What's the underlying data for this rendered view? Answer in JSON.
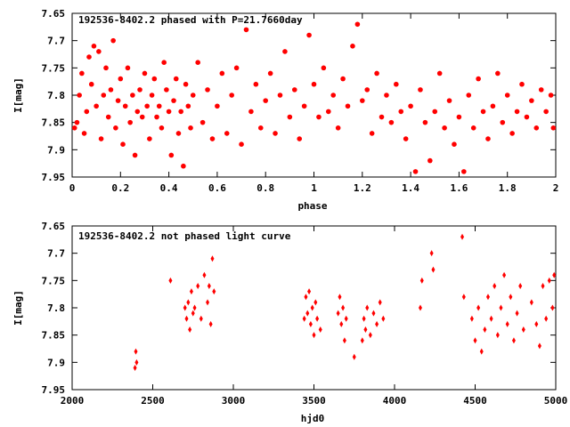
{
  "chart_data": [
    {
      "type": "scatter",
      "title": "192536-8402.2 phased with P=21.7660day",
      "xlabel": "phase",
      "ylabel": "I[mag]",
      "xlim": [
        0,
        2
      ],
      "ylim": [
        7.95,
        7.65
      ],
      "y_inverted": true,
      "xticks": [
        0,
        0.2,
        0.4,
        0.6,
        0.8,
        1,
        1.2,
        1.4,
        1.6,
        1.8,
        2
      ],
      "xtick_labels": [
        "0",
        "0.2",
        "0.4",
        "0.6",
        "0.8",
        "1",
        "1.2",
        "1.4",
        "1.6",
        "1.8",
        "2"
      ],
      "yticks": [
        7.65,
        7.7,
        7.75,
        7.8,
        7.85,
        7.9,
        7.95
      ],
      "ytick_labels": [
        "7.65",
        "7.7",
        "7.75",
        "7.8",
        "7.85",
        "7.9",
        "7.95"
      ],
      "marker_color": "#ff0000",
      "marker": "filled-circle",
      "points": [
        [
          0.01,
          7.86
        ],
        [
          0.02,
          7.85
        ],
        [
          0.03,
          7.8
        ],
        [
          0.04,
          7.76
        ],
        [
          0.05,
          7.87
        ],
        [
          0.06,
          7.83
        ],
        [
          0.07,
          7.73
        ],
        [
          0.08,
          7.78
        ],
        [
          0.09,
          7.71
        ],
        [
          0.1,
          7.82
        ],
        [
          0.11,
          7.72
        ],
        [
          0.12,
          7.88
        ],
        [
          0.13,
          7.8
        ],
        [
          0.14,
          7.75
        ],
        [
          0.15,
          7.84
        ],
        [
          0.16,
          7.79
        ],
        [
          0.17,
          7.7
        ],
        [
          0.18,
          7.86
        ],
        [
          0.19,
          7.81
        ],
        [
          0.2,
          7.77
        ],
        [
          0.21,
          7.89
        ],
        [
          0.22,
          7.82
        ],
        [
          0.23,
          7.75
        ],
        [
          0.24,
          7.85
        ],
        [
          0.25,
          7.8
        ],
        [
          0.26,
          7.91
        ],
        [
          0.27,
          7.83
        ],
        [
          0.28,
          7.79
        ],
        [
          0.29,
          7.84
        ],
        [
          0.3,
          7.76
        ],
        [
          0.31,
          7.82
        ],
        [
          0.32,
          7.88
        ],
        [
          0.33,
          7.8
        ],
        [
          0.34,
          7.77
        ],
        [
          0.35,
          7.84
        ],
        [
          0.36,
          7.82
        ],
        [
          0.37,
          7.86
        ],
        [
          0.38,
          7.74
        ],
        [
          0.39,
          7.79
        ],
        [
          0.4,
          7.83
        ],
        [
          0.41,
          7.91
        ],
        [
          0.42,
          7.81
        ],
        [
          0.43,
          7.77
        ],
        [
          0.44,
          7.87
        ],
        [
          0.45,
          7.83
        ],
        [
          0.46,
          7.93
        ],
        [
          0.47,
          7.78
        ],
        [
          0.48,
          7.82
        ],
        [
          0.49,
          7.86
        ],
        [
          0.5,
          7.8
        ],
        [
          0.52,
          7.74
        ],
        [
          0.54,
          7.85
        ],
        [
          0.56,
          7.79
        ],
        [
          0.58,
          7.88
        ],
        [
          0.6,
          7.82
        ],
        [
          0.62,
          7.76
        ],
        [
          0.64,
          7.87
        ],
        [
          0.66,
          7.8
        ],
        [
          0.68,
          7.75
        ],
        [
          0.7,
          7.89
        ],
        [
          0.72,
          7.68
        ],
        [
          0.74,
          7.83
        ],
        [
          0.76,
          7.78
        ],
        [
          0.78,
          7.86
        ],
        [
          0.8,
          7.81
        ],
        [
          0.82,
          7.76
        ],
        [
          0.84,
          7.87
        ],
        [
          0.86,
          7.8
        ],
        [
          0.88,
          7.72
        ],
        [
          0.9,
          7.84
        ],
        [
          0.92,
          7.79
        ],
        [
          0.94,
          7.88
        ],
        [
          0.96,
          7.82
        ],
        [
          0.98,
          7.69
        ],
        [
          1.0,
          7.78
        ],
        [
          1.02,
          7.84
        ],
        [
          1.04,
          7.75
        ],
        [
          1.06,
          7.83
        ],
        [
          1.08,
          7.8
        ],
        [
          1.1,
          7.86
        ],
        [
          1.12,
          7.77
        ],
        [
          1.14,
          7.82
        ],
        [
          1.16,
          7.71
        ],
        [
          1.18,
          7.67
        ],
        [
          1.2,
          7.81
        ],
        [
          1.22,
          7.79
        ],
        [
          1.24,
          7.87
        ],
        [
          1.26,
          7.76
        ],
        [
          1.28,
          7.84
        ],
        [
          1.3,
          7.8
        ],
        [
          1.32,
          7.85
        ],
        [
          1.34,
          7.78
        ],
        [
          1.36,
          7.83
        ],
        [
          1.38,
          7.88
        ],
        [
          1.4,
          7.82
        ],
        [
          1.42,
          7.94
        ],
        [
          1.44,
          7.79
        ],
        [
          1.46,
          7.85
        ],
        [
          1.48,
          7.92
        ],
        [
          1.5,
          7.83
        ],
        [
          1.52,
          7.76
        ],
        [
          1.54,
          7.86
        ],
        [
          1.56,
          7.81
        ],
        [
          1.58,
          7.89
        ],
        [
          1.6,
          7.84
        ],
        [
          1.62,
          7.94
        ],
        [
          1.64,
          7.8
        ],
        [
          1.66,
          7.86
        ],
        [
          1.68,
          7.77
        ],
        [
          1.7,
          7.83
        ],
        [
          1.72,
          7.88
        ],
        [
          1.74,
          7.82
        ],
        [
          1.76,
          7.76
        ],
        [
          1.78,
          7.85
        ],
        [
          1.8,
          7.8
        ],
        [
          1.82,
          7.87
        ],
        [
          1.84,
          7.83
        ],
        [
          1.86,
          7.78
        ],
        [
          1.88,
          7.84
        ],
        [
          1.9,
          7.81
        ],
        [
          1.92,
          7.86
        ],
        [
          1.94,
          7.79
        ],
        [
          1.96,
          7.83
        ],
        [
          1.98,
          7.8
        ],
        [
          1.99,
          7.86
        ]
      ]
    },
    {
      "type": "scatter",
      "title": "192536-8402.2 not phased light curve",
      "xlabel": "hjd0",
      "ylabel": "I[mag]",
      "xlim": [
        2000,
        5000
      ],
      "ylim": [
        7.95,
        7.65
      ],
      "y_inverted": true,
      "xticks": [
        2000,
        2500,
        3000,
        3500,
        4000,
        4500,
        5000
      ],
      "xtick_labels": [
        "2000",
        "2500",
        "3000",
        "3500",
        "4000",
        "4500",
        "5000"
      ],
      "yticks": [
        7.65,
        7.7,
        7.75,
        7.8,
        7.85,
        7.9,
        7.95
      ],
      "ytick_labels": [
        "7.65",
        "7.7",
        "7.75",
        "7.8",
        "7.85",
        "7.9",
        "7.95"
      ],
      "marker_color": "#ff0000",
      "marker": "filled-diamond",
      "points": [
        [
          2390,
          7.91
        ],
        [
          2395,
          7.88
        ],
        [
          2400,
          7.9
        ],
        [
          2610,
          7.75
        ],
        [
          2700,
          7.8
        ],
        [
          2710,
          7.82
        ],
        [
          2720,
          7.79
        ],
        [
          2730,
          7.84
        ],
        [
          2740,
          7.77
        ],
        [
          2750,
          7.81
        ],
        [
          2760,
          7.8
        ],
        [
          2780,
          7.76
        ],
        [
          2800,
          7.82
        ],
        [
          2820,
          7.74
        ],
        [
          2840,
          7.79
        ],
        [
          2850,
          7.76
        ],
        [
          2860,
          7.83
        ],
        [
          2870,
          7.71
        ],
        [
          2880,
          7.77
        ],
        [
          3440,
          7.82
        ],
        [
          3450,
          7.78
        ],
        [
          3460,
          7.81
        ],
        [
          3470,
          7.77
        ],
        [
          3480,
          7.83
        ],
        [
          3490,
          7.8
        ],
        [
          3500,
          7.85
        ],
        [
          3510,
          7.79
        ],
        [
          3520,
          7.82
        ],
        [
          3540,
          7.84
        ],
        [
          3650,
          7.81
        ],
        [
          3660,
          7.78
        ],
        [
          3670,
          7.83
        ],
        [
          3680,
          7.8
        ],
        [
          3690,
          7.86
        ],
        [
          3700,
          7.82
        ],
        [
          3750,
          7.89
        ],
        [
          3800,
          7.86
        ],
        [
          3810,
          7.82
        ],
        [
          3820,
          7.84
        ],
        [
          3830,
          7.8
        ],
        [
          3850,
          7.85
        ],
        [
          3870,
          7.81
        ],
        [
          3890,
          7.83
        ],
        [
          3910,
          7.79
        ],
        [
          3930,
          7.82
        ],
        [
          4160,
          7.8
        ],
        [
          4170,
          7.75
        ],
        [
          4230,
          7.7
        ],
        [
          4240,
          7.73
        ],
        [
          4420,
          7.67
        ],
        [
          4430,
          7.78
        ],
        [
          4480,
          7.82
        ],
        [
          4500,
          7.86
        ],
        [
          4520,
          7.8
        ],
        [
          4540,
          7.88
        ],
        [
          4560,
          7.84
        ],
        [
          4580,
          7.78
        ],
        [
          4600,
          7.82
        ],
        [
          4620,
          7.76
        ],
        [
          4640,
          7.85
        ],
        [
          4660,
          7.8
        ],
        [
          4680,
          7.74
        ],
        [
          4700,
          7.83
        ],
        [
          4720,
          7.78
        ],
        [
          4740,
          7.86
        ],
        [
          4760,
          7.81
        ],
        [
          4780,
          7.76
        ],
        [
          4800,
          7.84
        ],
        [
          4850,
          7.79
        ],
        [
          4880,
          7.83
        ],
        [
          4900,
          7.87
        ],
        [
          4920,
          7.76
        ],
        [
          4940,
          7.82
        ],
        [
          4960,
          7.75
        ],
        [
          4980,
          7.8
        ],
        [
          4990,
          7.74
        ]
      ]
    }
  ]
}
